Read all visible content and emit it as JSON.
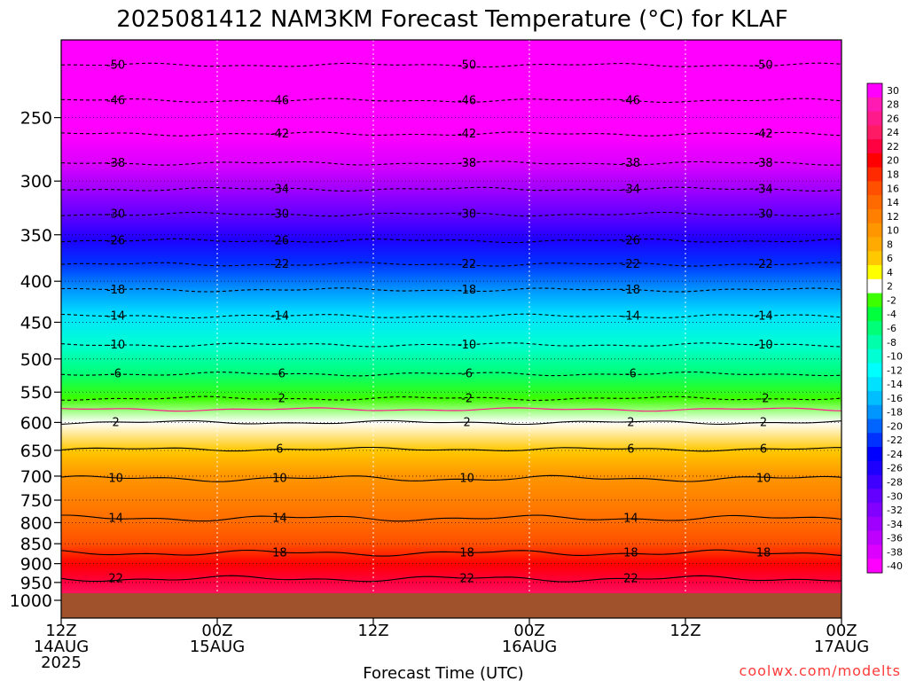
{
  "chart_data": {
    "type": "heatmap",
    "title": "2025081412 NAM3KM Forecast Temperature (°C) for KLAF",
    "xlabel": "Forecast Time (UTC)",
    "ylabel": "",
    "y_axis": {
      "scale": "log-pressure",
      "inverted": true,
      "range": [
        1000,
        200
      ],
      "ticks": [
        250,
        300,
        350,
        400,
        450,
        500,
        550,
        600,
        650,
        700,
        750,
        800,
        850,
        900,
        950,
        1000
      ]
    },
    "x_axis": {
      "ticks": [
        {
          "time": "12Z",
          "date": "14AUG",
          "year": "2025"
        },
        {
          "time": "00Z",
          "date": "15AUG",
          "year": ""
        },
        {
          "time": "12Z",
          "date": "",
          "year": ""
        },
        {
          "time": "00Z",
          "date": "16AUG",
          "year": ""
        },
        {
          "time": "12Z",
          "date": "",
          "year": ""
        },
        {
          "time": "00Z",
          "date": "17AUG",
          "year": ""
        }
      ]
    },
    "colorbar": {
      "labels": [
        "30",
        "28",
        "26",
        "24",
        "22",
        "20",
        "18",
        "16",
        "14",
        "12",
        "10",
        "8",
        "6",
        "4",
        "2",
        "-2",
        "-4",
        "-6",
        "-8",
        "-10",
        "-12",
        "-14",
        "-16",
        "-18",
        "-20",
        "-22",
        "-24",
        "-26",
        "-28",
        "-30",
        "-32",
        "-34",
        "-36",
        "-38",
        "-40"
      ],
      "colors": [
        "#ff00ff",
        "#ff1ab4",
        "#ff1a8c",
        "#ff1a66",
        "#ff0040",
        "#ff0000",
        "#ff2a00",
        "#ff5000",
        "#ff6a00",
        "#ff8000",
        "#ff9600",
        "#ffaa00",
        "#ffc800",
        "#ffff00",
        "#ffffff",
        "#3cff00",
        "#00ff3c",
        "#00ff78",
        "#00ffaa",
        "#00ffd2",
        "#00ffff",
        "#00e1ff",
        "#00beff",
        "#0096ff",
        "#0064ff",
        "#0032ff",
        "#0000ff",
        "#1e00ff",
        "#4000ff",
        "#6400ff",
        "#8200ff",
        "#a000ff",
        "#be00ff",
        "#dc00ff",
        "#ff00ff"
      ]
    },
    "contours": [
      {
        "value": -50,
        "pressure": 215
      },
      {
        "value": -46,
        "pressure": 238
      },
      {
        "value": -42,
        "pressure": 262
      },
      {
        "value": -38,
        "pressure": 285
      },
      {
        "value": -34,
        "pressure": 307
      },
      {
        "value": -30,
        "pressure": 330
      },
      {
        "value": -26,
        "pressure": 356
      },
      {
        "value": -22,
        "pressure": 381
      },
      {
        "value": -18,
        "pressure": 410
      },
      {
        "value": -14,
        "pressure": 442
      },
      {
        "value": -10,
        "pressure": 480
      },
      {
        "value": -6,
        "pressure": 522
      },
      {
        "value": -2,
        "pressure": 560
      },
      {
        "value": 2,
        "pressure": 600
      },
      {
        "value": 6,
        "pressure": 648
      },
      {
        "value": 10,
        "pressure": 705
      },
      {
        "value": 14,
        "pressure": 790
      },
      {
        "value": 18,
        "pressure": 873
      },
      {
        "value": 22,
        "pressure": 940
      }
    ],
    "surface_pressure": 980,
    "freezing_level_pressure": 578,
    "grid": true
  },
  "credit": "coolwx.com/modelts"
}
